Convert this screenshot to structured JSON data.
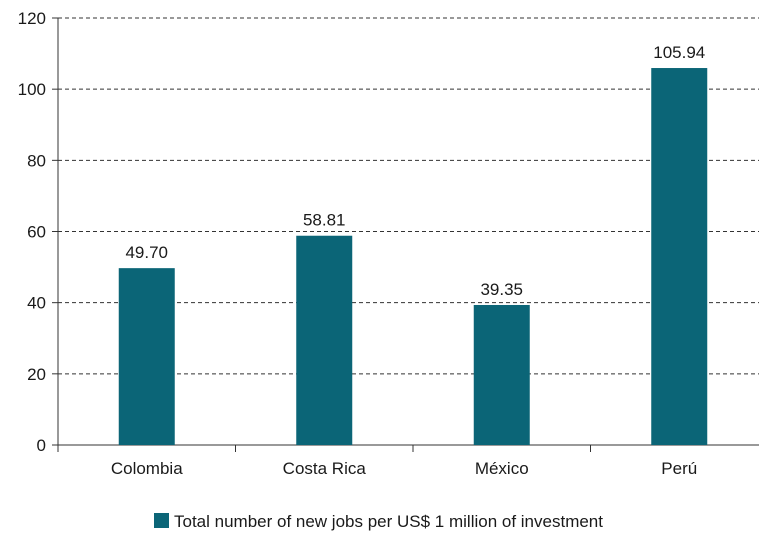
{
  "chart_data": {
    "type": "bar",
    "title": "",
    "xlabel": "",
    "ylabel": "",
    "categories": [
      "Colombia",
      "Costa Rica",
      "México",
      "Perú"
    ],
    "series": [
      {
        "name": "Total number of new jobs per US$ 1 million of investment",
        "values": [
          49.7,
          58.81,
          39.35,
          105.94
        ],
        "value_labels": [
          "49.70",
          "58.81",
          "39.35",
          "105.94"
        ],
        "color": "#0b6577"
      }
    ],
    "ylim": [
      0,
      120
    ],
    "yticks": [
      "0",
      "20",
      "40",
      "60",
      "80",
      "100",
      "120"
    ],
    "grid": "horizontal dashed",
    "legend_position": "bottom"
  }
}
